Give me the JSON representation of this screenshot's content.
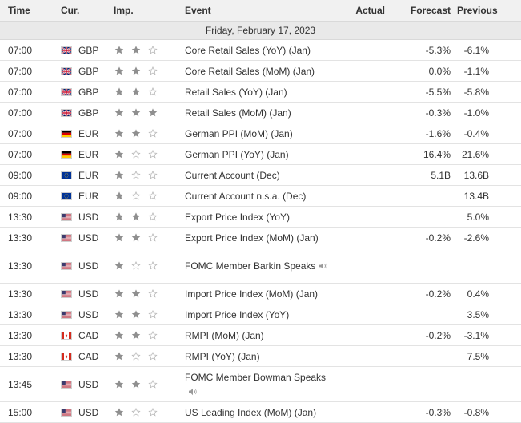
{
  "header": {
    "time": "Time",
    "currency": "Cur.",
    "importance": "Imp.",
    "event": "Event",
    "actual": "Actual",
    "forecast": "Forecast",
    "previous": "Previous"
  },
  "date_label": "Friday, February 17, 2023",
  "rows": [
    {
      "time": "07:00",
      "flag": "uk-flag",
      "currency": "GBP",
      "importance": 2,
      "event": "Core Retail Sales (YoY) (Jan)",
      "actual": "",
      "forecast": "-5.3%",
      "previous": "-6.1%"
    },
    {
      "time": "07:00",
      "flag": "uk-flag",
      "currency": "GBP",
      "importance": 2,
      "event": "Core Retail Sales (MoM) (Jan)",
      "actual": "",
      "forecast": "0.0%",
      "previous": "-1.1%"
    },
    {
      "time": "07:00",
      "flag": "uk-flag",
      "currency": "GBP",
      "importance": 2,
      "event": "Retail Sales (YoY) (Jan)",
      "actual": "",
      "forecast": "-5.5%",
      "previous": "-5.8%"
    },
    {
      "time": "07:00",
      "flag": "uk-flag",
      "currency": "GBP",
      "importance": 3,
      "event": "Retail Sales (MoM) (Jan)",
      "actual": "",
      "forecast": "-0.3%",
      "previous": "-1.0%"
    },
    {
      "time": "07:00",
      "flag": "germany-flag",
      "currency": "EUR",
      "importance": 2,
      "event": "German PPI (MoM) (Jan)",
      "actual": "",
      "forecast": "-1.6%",
      "previous": "-0.4%"
    },
    {
      "time": "07:00",
      "flag": "germany-flag",
      "currency": "EUR",
      "importance": 1,
      "event": "German PPI (YoY) (Jan)",
      "actual": "",
      "forecast": "16.4%",
      "previous": "21.6%"
    },
    {
      "time": "09:00",
      "flag": "eu-flag",
      "currency": "EUR",
      "importance": 1,
      "event": "Current Account (Dec)",
      "actual": "",
      "forecast": "5.1B",
      "previous": "13.6B"
    },
    {
      "time": "09:00",
      "flag": "eu-flag",
      "currency": "EUR",
      "importance": 1,
      "event": "Current Account n.s.a. (Dec)",
      "actual": "",
      "forecast": "",
      "previous": "13.4B"
    },
    {
      "time": "13:30",
      "flag": "us-flag",
      "currency": "USD",
      "importance": 2,
      "event": "Export Price Index (YoY)",
      "actual": "",
      "forecast": "",
      "previous": "5.0%"
    },
    {
      "time": "13:30",
      "flag": "us-flag",
      "currency": "USD",
      "importance": 2,
      "event": "Export Price Index (MoM) (Jan)",
      "actual": "",
      "forecast": "-0.2%",
      "previous": "-2.6%"
    },
    {
      "time": "13:30",
      "flag": "us-flag",
      "currency": "USD",
      "importance": 1,
      "event": "FOMC Member Barkin Speaks",
      "speech": true,
      "actual": "",
      "forecast": "",
      "previous": ""
    },
    {
      "time": "13:30",
      "flag": "us-flag",
      "currency": "USD",
      "importance": 2,
      "event": "Import Price Index (MoM) (Jan)",
      "actual": "",
      "forecast": "-0.2%",
      "previous": "0.4%"
    },
    {
      "time": "13:30",
      "flag": "us-flag",
      "currency": "USD",
      "importance": 2,
      "event": "Import Price Index (YoY)",
      "actual": "",
      "forecast": "",
      "previous": "3.5%"
    },
    {
      "time": "13:30",
      "flag": "canada-flag",
      "currency": "CAD",
      "importance": 2,
      "event": "RMPI (MoM) (Jan)",
      "actual": "",
      "forecast": "-0.2%",
      "previous": "-3.1%"
    },
    {
      "time": "13:30",
      "flag": "canada-flag",
      "currency": "CAD",
      "importance": 1,
      "event": "RMPI (YoY) (Jan)",
      "actual": "",
      "forecast": "",
      "previous": "7.5%"
    },
    {
      "time": "13:45",
      "flag": "us-flag",
      "currency": "USD",
      "importance": 2,
      "event": "FOMC Member Bowman Speaks",
      "speech": true,
      "actual": "",
      "forecast": "",
      "previous": ""
    },
    {
      "time": "15:00",
      "flag": "us-flag",
      "currency": "USD",
      "importance": 1,
      "event": "US Leading Index (MoM) (Jan)",
      "actual": "",
      "forecast": "-0.3%",
      "previous": "-0.8%"
    }
  ],
  "colors": {
    "header_bg": "#f1f1f1",
    "date_bg": "#e9e9e9",
    "star_filled": "#8f8f8f",
    "star_empty": "#b5b5b5",
    "text": "#333333"
  }
}
